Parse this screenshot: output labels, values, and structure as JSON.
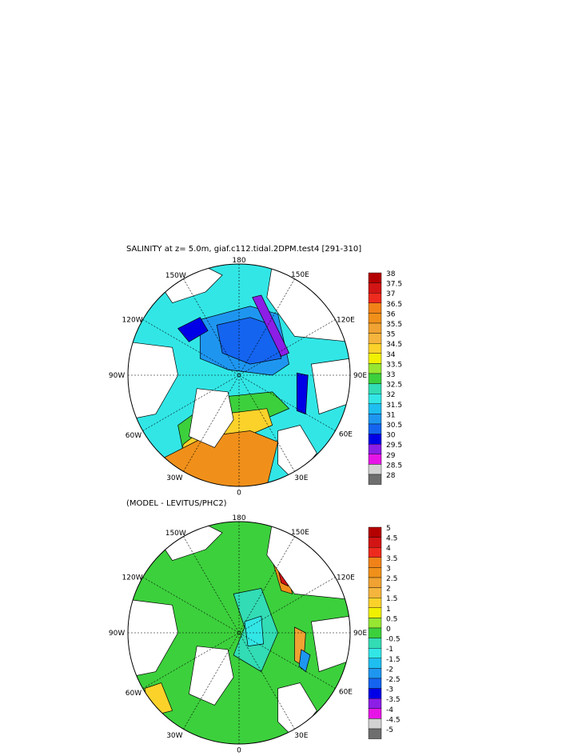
{
  "figure": {
    "title": "SALINITY at z=    5.0m, giaf.c112.tidal.2DPM.test4  [291-310]",
    "panel2_title": "(MODEL  -  LEVITUS/PHC2)"
  },
  "longitude_labels": [
    "180",
    "150E",
    "120E",
    "90E",
    "60E",
    "30E",
    "0",
    "30W",
    "60W",
    "90W",
    "120W",
    "150W"
  ],
  "panels": [
    {
      "name": "salinity",
      "colorbar_levels": [
        "38",
        "37.5",
        "37",
        "36.5",
        "36",
        "35.5",
        "35",
        "34.5",
        "34",
        "33.5",
        "33",
        "32.5",
        "32",
        "31.5",
        "31",
        "30.5",
        "30",
        "29.5",
        "29",
        "28.5",
        "28"
      ],
      "colorbar_colors": [
        "#b40000",
        "#d21414",
        "#ee2a1e",
        "#f08218",
        "#f0901a",
        "#f0a232",
        "#f5b43c",
        "#fad22a",
        "#f0f000",
        "#96e632",
        "#3cd03c",
        "#32dcb4",
        "#32e6e6",
        "#1ebef0",
        "#1e96f0",
        "#1464f0",
        "#0000e6",
        "#8c1ee6",
        "#e614e6",
        "#d2d2d2",
        "#6e6e6e"
      ]
    },
    {
      "name": "difference",
      "colorbar_levels": [
        "5",
        "4.5",
        "4",
        "3.5",
        "3",
        "2.5",
        "2",
        "1.5",
        "1",
        "0.5",
        "0",
        "-0.5",
        "-1",
        "-1.5",
        "-2",
        "-2.5",
        "-3",
        "-3.5",
        "-4",
        "-4.5",
        "-5"
      ],
      "colorbar_colors": [
        "#b40000",
        "#d21414",
        "#ee2a1e",
        "#f08218",
        "#f0901a",
        "#f0a232",
        "#f5b43c",
        "#fad22a",
        "#f0f000",
        "#96e632",
        "#3cd03c",
        "#32dcb4",
        "#32e6e6",
        "#1ebef0",
        "#1e96f0",
        "#1464f0",
        "#0000e6",
        "#8c1ee6",
        "#e614e6",
        "#d2d2d2",
        "#6e6e6e"
      ]
    }
  ]
}
